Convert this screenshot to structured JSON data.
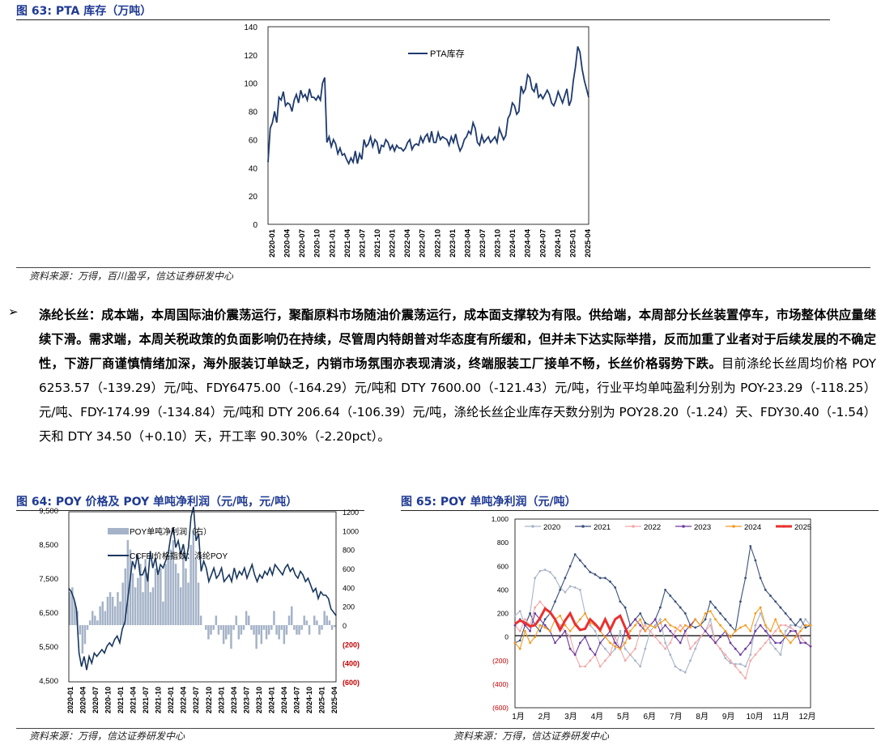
{
  "fig63": {
    "title": "图 63:  PTA 库存（万吨）",
    "source": "资料来源：万得，百川盈孚，信达证券研发中心",
    "chart_data": {
      "type": "line",
      "title": "",
      "legend": "PTA库存",
      "y_ticks": [
        "0",
        "20",
        "40",
        "60",
        "80",
        "100",
        "120",
        "140"
      ],
      "ylim": [
        0,
        140
      ],
      "x_ticks": [
        "2020-01",
        "2020-04",
        "2020-07",
        "2020-10",
        "2021-01",
        "2021-04",
        "2021-07",
        "2021-10",
        "2022-01",
        "2022-04",
        "2022-07",
        "2022-10",
        "2023-01",
        "2023-04",
        "2023-07",
        "2023-10",
        "2024-01",
        "2024-04",
        "2024-07",
        "2024-10",
        "2025-01",
        "2025-04"
      ],
      "values": [
        44,
        68,
        72,
        80,
        72,
        90,
        88,
        94,
        84,
        86,
        85,
        80,
        88,
        92,
        86,
        95,
        90,
        92,
        88,
        96,
        90,
        90,
        88,
        91,
        88,
        100,
        104,
        58,
        62,
        55,
        60,
        57,
        50,
        54,
        49,
        50,
        46,
        43,
        47,
        44,
        52,
        43,
        50,
        46,
        60,
        55,
        57,
        62,
        55,
        60,
        58,
        50,
        56,
        55,
        60,
        58,
        53,
        56,
        52,
        56,
        54,
        54,
        52,
        54,
        58,
        60,
        53,
        56,
        57,
        56,
        62,
        58,
        62,
        64,
        58,
        66,
        58,
        58,
        65,
        60,
        62,
        61,
        60,
        56,
        62,
        58,
        64,
        57,
        52,
        55,
        60,
        62,
        66,
        64,
        72,
        68,
        58,
        56,
        63,
        58,
        60,
        62,
        58,
        60,
        62,
        58,
        68,
        64,
        60,
        63,
        75,
        78,
        86,
        84,
        78,
        80,
        98,
        93,
        96,
        106,
        104,
        96,
        94,
        100,
        90,
        92,
        89,
        92,
        95,
        92,
        86,
        84,
        88,
        94,
        90,
        86,
        91,
        96,
        84,
        88,
        102,
        112,
        126,
        122,
        110,
        102,
        96,
        90
      ]
    }
  },
  "paragraph": {
    "bullet": "➢",
    "bold_part": "涤纶长丝：成本端，本周国际油价震荡运行，聚酯原料市场随油价震荡运行，成本面支撑较为有限。供给端，本周部分长丝装置停车，市场整体供应量继续下滑。需求端，本周关税政策的负面影响仍在持续，尽管周内特朗普对华态度有所缓和，但并未下达实际举措，反而加重了业者对于后续发展的不确定性，下游厂商谨慎情绪加深，海外服装订单缺乏，内销市场氛围亦表现清淡，终端服装工厂接单不畅，长丝价格弱势下跌。",
    "normal_part": "目前涤纶长丝周均价格 POY 6253.57（-139.29）元/吨、FDY6475.00（-164.29）元/吨和 DTY 7600.00（-121.43）元/吨，行业平均单吨盈利分别为 POY-23.29（-118.25）元/吨、FDY-174.99（-134.84）元/吨和 DTY 206.64（-106.39）元/吨，涤纶长丝企业库存天数分别为 POY28.20（-1.24）天、FDY30.40（-1.54）天和 DTY 34.50（+0.10）天，开工率 90.30%（-2.20pct）。"
  },
  "fig64": {
    "title": "图 64:  POY 价格及 POY 单吨净利润（元/吨，元/吨）",
    "source": "资料来源：万得，信达证券研发中心",
    "chart_data": {
      "type": "bar",
      "legend": [
        "POY单吨净利润（右）",
        "CCFEI价格指数：涤纶POY"
      ],
      "left_ticks": [
        "9,500",
        "8,500",
        "7,500",
        "6,500",
        "5,500",
        "4,500"
      ],
      "left_ylim": [
        4500,
        9500
      ],
      "right_ticks": [
        "1200",
        "1000",
        "800",
        "600",
        "400",
        "200",
        "0",
        "(200)",
        "(400)",
        "(600)"
      ],
      "right_ylim": [
        -600,
        1200
      ],
      "x_ticks": [
        "2020-01",
        "2020-04",
        "2020-07",
        "2020-10",
        "2021-01",
        "2021-04",
        "2021-07",
        "2021-10",
        "2022-01",
        "2022-04",
        "2022-07",
        "2022-10",
        "2023-01",
        "2023-04",
        "2023-07",
        "2023-10",
        "2024-01",
        "2024-04",
        "2024-07",
        "2024-10",
        "2025-01",
        "2025-04"
      ],
      "price": [
        7200,
        7100,
        6900,
        6600,
        5300,
        4900,
        5200,
        4800,
        5200,
        5000,
        5300,
        5200,
        5300,
        5400,
        5300,
        5500,
        5600,
        5500,
        5700,
        5800,
        5600,
        6000,
        6200,
        6800,
        7400,
        8000,
        7800,
        8200,
        7600,
        7600,
        7800,
        7400,
        8300,
        7800,
        8100,
        7600,
        7900,
        7800,
        8000,
        8200,
        8700,
        9000,
        8400,
        8600,
        8200,
        8500,
        8000,
        8400,
        9300,
        9600,
        8600,
        8800,
        7700,
        8000,
        7800,
        7400,
        7600,
        7800,
        7500,
        7600,
        7800,
        7400,
        7500,
        7600,
        7400,
        7800,
        7500,
        7700,
        7600,
        7800,
        7500,
        7700,
        7900,
        7600,
        7400,
        7600,
        7500,
        7700,
        7600,
        7800,
        7600,
        7900,
        7800,
        7700,
        7600,
        7800,
        7900,
        7700,
        7800,
        7600,
        7500,
        7700,
        7600,
        7400,
        7500,
        7300,
        7100,
        7200,
        6900,
        7100,
        7000,
        7000,
        6900,
        6600,
        6500,
        6400
      ],
      "profit": [
        350,
        400,
        250,
        150,
        -100,
        -300,
        -200,
        -50,
        50,
        150,
        100,
        50,
        200,
        250,
        150,
        300,
        350,
        300,
        200,
        350,
        250,
        450,
        600,
        900,
        800,
        550,
        400,
        500,
        650,
        350,
        700,
        550,
        350,
        400,
        600,
        550,
        600,
        250,
        650,
        700,
        800,
        900,
        650,
        550,
        400,
        750,
        600,
        450,
        850,
        1000,
        700,
        450,
        100,
        0,
        -50,
        -150,
        -100,
        -50,
        100,
        -100,
        -50,
        -200,
        -150,
        -100,
        -250,
        -50,
        100,
        -150,
        -100,
        -50,
        150,
        100,
        -50,
        -100,
        -250,
        -100,
        -200,
        -50,
        -150,
        -100,
        -50,
        150,
        -100,
        -150,
        -50,
        -200,
        -100,
        100,
        200,
        -50,
        -100,
        -100,
        -50,
        100,
        50,
        -100,
        0,
        100,
        50,
        -100,
        -50,
        150,
        100,
        50,
        -50,
        -20
      ]
    }
  },
  "fig65": {
    "title": "图 65:  POY 单吨净利润（元/吨）",
    "source": "资料来源：万得，信达证券研发中心",
    "chart_data": {
      "type": "line",
      "months": [
        "1月",
        "2月",
        "3月",
        "4月",
        "5月",
        "6月",
        "7月",
        "8月",
        "9月",
        "10月",
        "11月",
        "12月"
      ],
      "y_ticks": [
        "1,000",
        "800",
        "600",
        "400",
        "200",
        "0",
        "(200)",
        "(400)",
        "(600)"
      ],
      "ylim": [
        -600,
        1000
      ],
      "series": [
        {
          "name": "2020",
          "color": "#a9b4c8",
          "values": [
            180,
            220,
            100,
            200,
            500,
            560,
            570,
            550,
            500,
            420,
            380,
            430,
            420,
            400,
            200,
            100,
            50,
            -50,
            -100,
            -150,
            -100,
            50,
            -100,
            -150,
            -200,
            -250,
            -100,
            50,
            100,
            150,
            -50,
            -150,
            -250,
            -280,
            -300,
            -200,
            -100,
            0,
            50,
            150,
            -50,
            -100,
            -180,
            -220,
            -230,
            -230,
            -250,
            -150,
            100,
            200,
            100,
            -50,
            -100,
            -150,
            50,
            100,
            100,
            80,
            150,
            100
          ]
        },
        {
          "name": "2021",
          "color": "#3a4f7a",
          "values": [
            -50,
            -30,
            100,
            200,
            100,
            50,
            150,
            200,
            300,
            400,
            500,
            600,
            700,
            650,
            600,
            550,
            530,
            500,
            500,
            470,
            420,
            300,
            250,
            100,
            150,
            200,
            120,
            100,
            150,
            250,
            400,
            350,
            300,
            250,
            200,
            100,
            80,
            100,
            150,
            300,
            250,
            200,
            150,
            100,
            50,
            300,
            500,
            770,
            650,
            500,
            400,
            350,
            300,
            250,
            200,
            150,
            100,
            150,
            80,
            100
          ]
        },
        {
          "name": "2022",
          "color": "#f4a6a6",
          "values": [
            100,
            50,
            150,
            100,
            250,
            300,
            250,
            200,
            150,
            100,
            50,
            0,
            -150,
            -250,
            -250,
            -200,
            -150,
            -250,
            -200,
            -150,
            0,
            -100,
            -200,
            -150,
            -100,
            50,
            100,
            50,
            0,
            -50,
            -100,
            -50,
            50,
            100,
            50,
            -100,
            -50,
            0,
            50,
            100,
            -50,
            -100,
            -150,
            -200,
            -250,
            -300,
            -350,
            -200,
            -150,
            -100,
            -50,
            0,
            50,
            100,
            100,
            80,
            50,
            0,
            -50,
            -80
          ]
        },
        {
          "name": "2023",
          "color": "#6a3ba0",
          "values": [
            100,
            150,
            100,
            50,
            200,
            150,
            100,
            50,
            -50,
            0,
            50,
            -100,
            -150,
            -50,
            0,
            -100,
            -150,
            -50,
            0,
            50,
            -50,
            -100,
            50,
            100,
            150,
            100,
            50,
            100,
            150,
            50,
            100,
            50,
            0,
            -50,
            50,
            100,
            150,
            100,
            50,
            0,
            -50,
            0,
            50,
            -50,
            -100,
            -150,
            -100,
            -50,
            50,
            100,
            50,
            0,
            -50,
            -50,
            0,
            50,
            50,
            -50,
            -50,
            -80
          ]
        },
        {
          "name": "2024",
          "color": "#f59b1f",
          "values": [
            -50,
            -100,
            50,
            -50,
            0,
            100,
            80,
            50,
            150,
            180,
            100,
            50,
            100,
            150,
            200,
            120,
            100,
            50,
            0,
            -50,
            -80,
            -100,
            -50,
            50,
            100,
            150,
            50,
            100,
            80,
            120,
            150,
            100,
            80,
            50,
            100,
            80,
            150,
            100,
            200,
            220,
            150,
            100,
            50,
            0,
            50,
            80,
            100,
            50,
            200,
            250,
            100,
            50,
            150,
            50,
            0,
            -50,
            0,
            50,
            100,
            100
          ]
        },
        {
          "name": "2025",
          "color": "#e8312f",
          "values": [
            110,
            140,
            120,
            90,
            100,
            160,
            240,
            210,
            150,
            60,
            140,
            200,
            110,
            60,
            70,
            150,
            110,
            60,
            150,
            60,
            150,
            180,
            80,
            -20
          ]
        }
      ]
    }
  }
}
